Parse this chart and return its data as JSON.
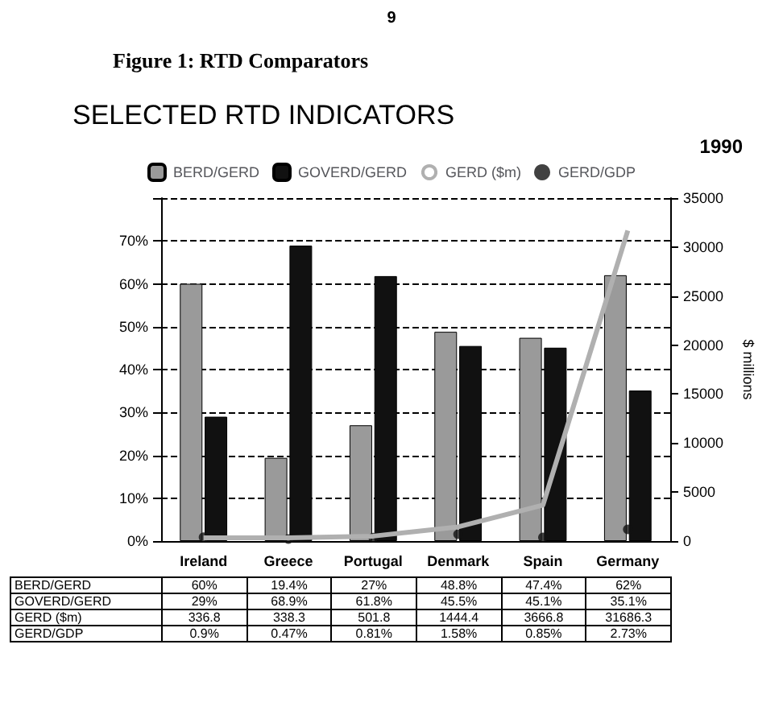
{
  "chart_data": {
    "type": "bar",
    "title": "SELECTED RTD INDICATORS",
    "subtitle": "1990",
    "annotations": [
      "9",
      "Figure 1:  RTD Comparators"
    ],
    "categories": [
      "Ireland",
      "Greece",
      "Portugal",
      "Denmark",
      "Spain",
      "Germany"
    ],
    "series": [
      {
        "name": "BERD/GERD",
        "color": "#9a9a9a",
        "values": [
          60,
          19.4,
          27,
          48.8,
          47.4,
          62
        ],
        "value_labels": [
          "60%",
          "19.4%",
          "27%",
          "48.8%",
          "47.4%",
          "62%"
        ]
      },
      {
        "name": "GOVERD/GERD",
        "color": "#111111",
        "values": [
          29,
          68.9,
          61.8,
          45.5,
          45.1,
          35.1
        ],
        "value_labels": [
          "29%",
          "68.9%",
          "61.8%",
          "45.5%",
          "45.1%",
          "35.1%"
        ]
      },
      {
        "name": "GERD ($m)",
        "type": "line",
        "axis": "y2",
        "color": "#b0b0b0",
        "values": [
          336.8,
          338.3,
          501.8,
          1444.4,
          3666.8,
          31686.3
        ],
        "value_labels": [
          "336.8",
          "338.3",
          "501.8",
          "1444.4",
          "3666.8",
          "31686.3"
        ]
      },
      {
        "name": "GERD/GDP",
        "type": "scatter",
        "marker": "circle",
        "color": "#111111",
        "values": [
          0.9,
          0.47,
          0.81,
          1.58,
          0.85,
          2.73
        ],
        "value_labels": [
          "0.9%",
          "0.47%",
          "0.81%",
          "1.58%",
          "0.85%",
          "2.73%"
        ]
      }
    ],
    "ylim": [
      0,
      80
    ],
    "yticks": [
      {
        "value": 0,
        "label": "0%"
      },
      {
        "value": 10,
        "label": "10%"
      },
      {
        "value": 20,
        "label": "20%"
      },
      {
        "value": 30,
        "label": "30%"
      },
      {
        "value": 40,
        "label": "40%"
      },
      {
        "value": 50,
        "label": "50%"
      },
      {
        "value": 60,
        "label": "60%"
      },
      {
        "value": 70,
        "label": "70%"
      },
      {
        "value": 80,
        "label": null
      }
    ],
    "y2lim": [
      0,
      35000
    ],
    "y2ticks": [
      0,
      5000,
      10000,
      15000,
      20000,
      25000,
      30000,
      35000
    ],
    "y2label": "$ millions",
    "grid": "y",
    "legend": "top"
  }
}
